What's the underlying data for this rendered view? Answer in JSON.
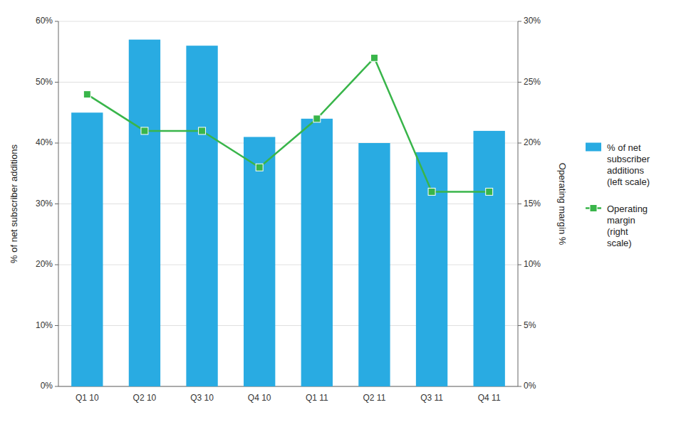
{
  "chart_data": {
    "type": "bar",
    "categories": [
      "Q1 10",
      "Q2 10",
      "Q3 10",
      "Q4 10",
      "Q1 11",
      "Q2 11",
      "Q3 11",
      "Q4 11"
    ],
    "series": [
      {
        "name": "% of net\nsubscriber\nadditions\n(left scale)",
        "type": "bar",
        "color": "#29ABE2",
        "values": [
          0.45,
          0.57,
          0.56,
          0.41,
          0.44,
          0.4,
          0.385,
          0.42
        ]
      },
      {
        "name": "Operating\nmargin\n(right\nscale)",
        "type": "line",
        "axis": "y2",
        "color": "#39B54A",
        "marker": "square",
        "values": [
          0.24,
          0.21,
          0.21,
          0.18,
          0.22,
          0.27,
          0.16,
          0.16
        ]
      }
    ],
    "y_label": "% of net subscriber additions",
    "y2_label": "Operating margin %",
    "ylim": [
      0,
      0.6
    ],
    "yticks": [
      {
        "value": 0.0,
        "label": "0%"
      },
      {
        "value": 0.1,
        "label": "10%"
      },
      {
        "value": 0.2,
        "label": "20%"
      },
      {
        "value": 0.3,
        "label": "30%"
      },
      {
        "value": 0.4,
        "label": "40%"
      },
      {
        "value": 0.5,
        "label": "50%"
      },
      {
        "value": 0.6,
        "label": "60%"
      }
    ],
    "y2lim": [
      0,
      0.3
    ],
    "y2ticks": [
      {
        "value": 0.0,
        "label": "0%"
      },
      {
        "value": 0.05,
        "label": "5%"
      },
      {
        "value": 0.1,
        "label": "10%"
      },
      {
        "value": 0.15,
        "label": "15%"
      },
      {
        "value": 0.2,
        "label": "20%"
      },
      {
        "value": 0.25,
        "label": "25%"
      },
      {
        "value": 0.3,
        "label": "30%"
      }
    ],
    "grid": true,
    "legend": "right"
  }
}
